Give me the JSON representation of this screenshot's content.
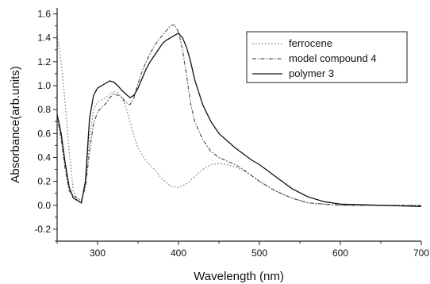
{
  "chart_data": {
    "type": "line",
    "xlabel": "Wavelength (nm)",
    "ylabel": "Absorbance(arb.units)",
    "xlim": [
      250,
      700
    ],
    "ylim": [
      -0.3,
      1.65
    ],
    "xticks": [
      300,
      400,
      500,
      600,
      700
    ],
    "yticks": [
      -0.2,
      0.0,
      0.2,
      0.4,
      0.6,
      0.8,
      1.0,
      1.2,
      1.4,
      1.6
    ],
    "ytick_labels": [
      "-0.2",
      "0.0",
      "0.2",
      "0.4",
      "0.6",
      "0.8",
      "1.0",
      "1.2",
      "1.4",
      "1.6"
    ],
    "legend_position": "top-right",
    "grid": false,
    "series": [
      {
        "name": "ferrocene",
        "style": "dotted",
        "color": "#777777",
        "x": [
          250,
          255,
          260,
          265,
          270,
          275,
          280,
          285,
          290,
          295,
          300,
          305,
          310,
          315,
          320,
          325,
          330,
          335,
          340,
          345,
          350,
          360,
          370,
          380,
          390,
          400,
          410,
          420,
          430,
          440,
          450,
          460,
          470,
          480,
          490,
          500,
          520,
          540,
          560,
          580,
          600,
          650,
          700
        ],
        "y": [
          1.42,
          1.2,
          0.85,
          0.45,
          0.12,
          0.04,
          0.03,
          0.2,
          0.55,
          0.8,
          0.86,
          0.88,
          0.9,
          0.93,
          0.95,
          0.94,
          0.9,
          0.82,
          0.7,
          0.58,
          0.48,
          0.37,
          0.3,
          0.22,
          0.16,
          0.15,
          0.18,
          0.24,
          0.3,
          0.34,
          0.35,
          0.34,
          0.32,
          0.29,
          0.25,
          0.2,
          0.12,
          0.06,
          0.02,
          0.01,
          0.0,
          0.0,
          0.0
        ]
      },
      {
        "name": "model compound 4",
        "style": "dash-dot",
        "color": "#555555",
        "x": [
          250,
          255,
          260,
          265,
          270,
          275,
          280,
          285,
          290,
          295,
          300,
          305,
          310,
          315,
          320,
          325,
          330,
          335,
          340,
          345,
          350,
          355,
          360,
          365,
          370,
          375,
          380,
          385,
          390,
          395,
          400,
          405,
          410,
          415,
          420,
          430,
          440,
          450,
          460,
          470,
          480,
          490,
          500,
          520,
          540,
          560,
          580,
          600,
          650,
          700
        ],
        "y": [
          0.75,
          0.55,
          0.3,
          0.12,
          0.08,
          0.06,
          0.04,
          0.15,
          0.45,
          0.68,
          0.78,
          0.82,
          0.85,
          0.9,
          0.93,
          0.92,
          0.9,
          0.86,
          0.84,
          0.9,
          1.02,
          1.12,
          1.2,
          1.27,
          1.33,
          1.38,
          1.42,
          1.46,
          1.5,
          1.51,
          1.45,
          1.3,
          1.08,
          0.85,
          0.7,
          0.55,
          0.45,
          0.4,
          0.37,
          0.34,
          0.3,
          0.25,
          0.2,
          0.12,
          0.06,
          0.02,
          0.01,
          0.0,
          0.0,
          0.0
        ]
      },
      {
        "name": "polymer 3",
        "style": "solid",
        "color": "#111111",
        "x": [
          250,
          255,
          260,
          265,
          270,
          275,
          280,
          285,
          290,
          295,
          300,
          305,
          310,
          315,
          320,
          325,
          330,
          335,
          340,
          345,
          350,
          355,
          360,
          365,
          370,
          375,
          380,
          385,
          390,
          395,
          400,
          405,
          410,
          415,
          420,
          430,
          440,
          450,
          460,
          470,
          480,
          490,
          500,
          510,
          520,
          540,
          560,
          580,
          600,
          650,
          700
        ],
        "y": [
          0.76,
          0.6,
          0.35,
          0.15,
          0.06,
          0.04,
          0.02,
          0.2,
          0.72,
          0.92,
          0.98,
          1.0,
          1.02,
          1.04,
          1.03,
          1.0,
          0.96,
          0.93,
          0.9,
          0.92,
          0.98,
          1.06,
          1.14,
          1.2,
          1.25,
          1.3,
          1.35,
          1.38,
          1.4,
          1.42,
          1.44,
          1.4,
          1.32,
          1.2,
          1.05,
          0.84,
          0.7,
          0.6,
          0.54,
          0.48,
          0.43,
          0.38,
          0.34,
          0.29,
          0.24,
          0.14,
          0.07,
          0.03,
          0.01,
          0.0,
          -0.01
        ]
      }
    ]
  }
}
